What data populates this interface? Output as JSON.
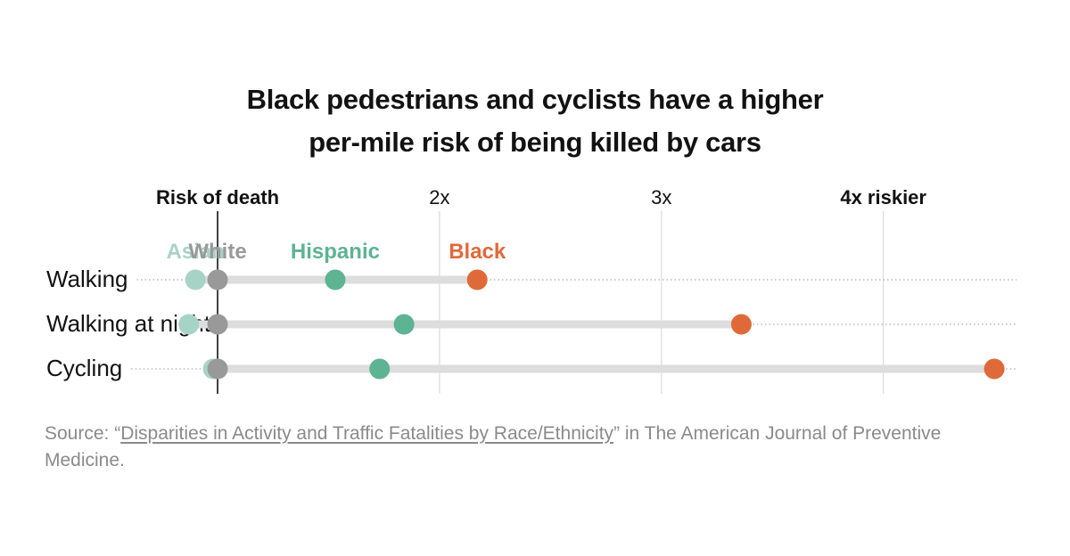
{
  "chart_data": {
    "type": "dot-range",
    "title_lines": [
      "Black pedestrians and cyclists have a higher",
      "per-mile risk of being killed by cars"
    ],
    "axis": {
      "baseline_label": "Risk of death",
      "ticks": [
        {
          "value": 2,
          "label": "2x",
          "bold": false
        },
        {
          "value": 3,
          "label": "3x",
          "bold": false
        },
        {
          "value": 4,
          "label": "4x riskier",
          "bold": true
        }
      ],
      "baseline_value": 1,
      "xlim": [
        0.14,
        4.6
      ],
      "grid": true
    },
    "series": [
      {
        "name": "Asian",
        "color": "#a7d3c6"
      },
      {
        "name": "White",
        "color": "#999999"
      },
      {
        "name": "Hispanic",
        "color": "#5db392"
      },
      {
        "name": "Black",
        "color": "#e0693a"
      }
    ],
    "rows": [
      {
        "label": "Walking",
        "values": {
          "Asian": 0.9,
          "White": 1.0,
          "Hispanic": 1.53,
          "Black": 2.17
        }
      },
      {
        "label": "Walking at night",
        "values": {
          "Asian": 0.87,
          "White": 1.0,
          "Hispanic": 1.84,
          "Black": 3.36
        }
      },
      {
        "label": "Cycling",
        "values": {
          "Asian": 0.98,
          "White": 1.0,
          "Hispanic": 1.73,
          "Black": 4.5
        }
      }
    ]
  },
  "source": {
    "prefix": "Source: “",
    "link_text": "Disparities in Activity and Traffic Fatalities by Race/Ethnicity",
    "suffix": "” in The American Journal of Preventive Medicine."
  },
  "colors": {
    "track": "#dddddd",
    "grid": "#d4d4d4",
    "baseline": "#121212",
    "leader": "#aaaaaa"
  }
}
